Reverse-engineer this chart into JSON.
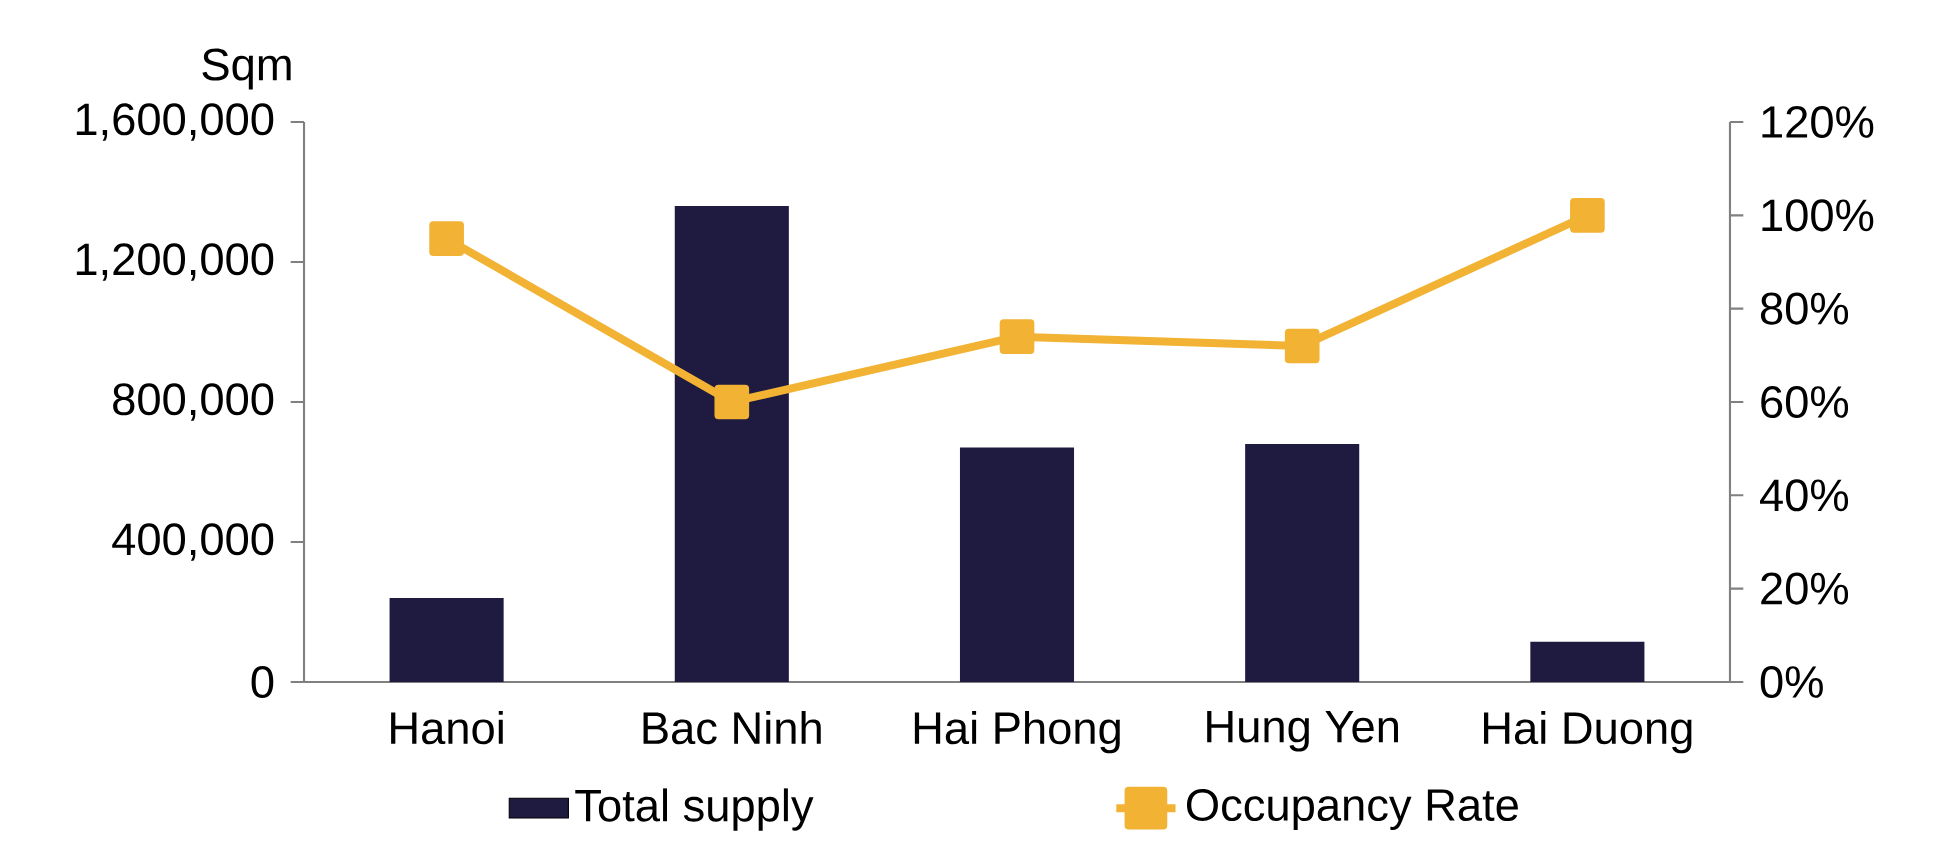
{
  "chart_data": {
    "type": "bar",
    "ylabel": "Sqm",
    "categories": [
      "Hanoi",
      "Bac Ninh",
      "Hai Phong",
      "Hung Yen",
      "Hai Duong"
    ],
    "series": [
      {
        "name": "Total supply",
        "color": "#1e1a40",
        "values": [
          240000,
          1360000,
          670000,
          680000,
          115000
        ]
      },
      {
        "name": "Occupancy Rate",
        "type": "line",
        "axis": "y2",
        "color": "#f2b233",
        "marker": "square",
        "values": [
          95,
          60,
          74,
          72,
          100
        ]
      }
    ],
    "ylim": [
      0,
      1600000
    ],
    "yticks": [
      {
        "value": 0,
        "label": "0"
      },
      {
        "value": 400000,
        "label": "400,000"
      },
      {
        "value": 800000,
        "label": "800,000"
      },
      {
        "value": 1200000,
        "label": "1,200,000"
      },
      {
        "value": 1600000,
        "label": "1,600,000"
      }
    ],
    "y2lim": [
      0,
      120
    ],
    "y2ticks": [
      {
        "value": 0,
        "label": "0%"
      },
      {
        "value": 20,
        "label": "20%"
      },
      {
        "value": 40,
        "label": "40%"
      },
      {
        "value": 60,
        "label": "60%"
      },
      {
        "value": 80,
        "label": "80%"
      },
      {
        "value": 100,
        "label": "100%"
      },
      {
        "value": 120,
        "label": "120%"
      }
    ],
    "legend": "bottom"
  }
}
